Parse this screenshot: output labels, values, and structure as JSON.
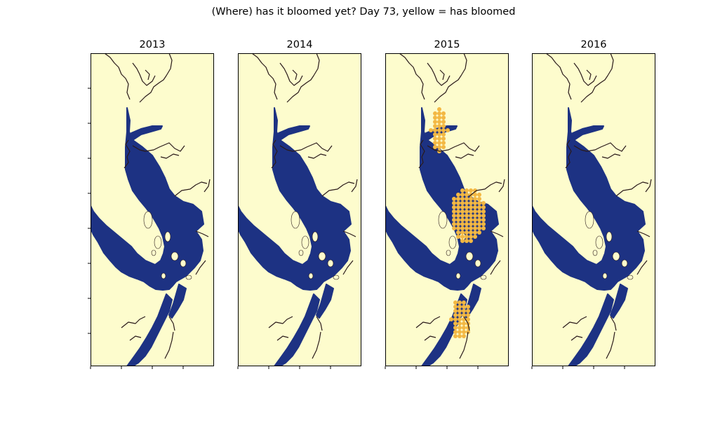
{
  "figure": {
    "title": "(Where) has it bloomed yet? Day 73, yellow = has bloomed"
  },
  "colors": {
    "background": "#fdfccd",
    "water_not_bloomed": "#1d3283",
    "bloomed": "#f3b843",
    "coastline": "#2a1a1a",
    "frame": "#000000"
  },
  "panels": [
    {
      "year": "2013",
      "bloomed_regions": []
    },
    {
      "year": "2014",
      "bloomed_regions": []
    },
    {
      "year": "2015",
      "bloomed_regions": [
        "northern strait",
        "central strait",
        "southern channels"
      ]
    },
    {
      "year": "2016",
      "bloomed_regions": []
    }
  ]
}
